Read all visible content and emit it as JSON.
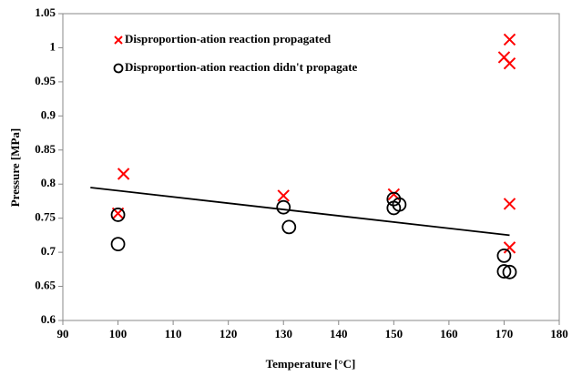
{
  "chart_data": {
    "type": "scatter",
    "xlabel": "Temperature [°C]",
    "ylabel": "Pressure [MPa]",
    "xlim": [
      90,
      180
    ],
    "xticks": [
      90,
      100,
      110,
      120,
      130,
      140,
      150,
      160,
      170,
      180
    ],
    "ylim": [
      0.6,
      1.05
    ],
    "yticks": [
      0.6,
      0.65,
      0.7,
      0.75,
      0.8,
      0.85,
      0.9,
      0.95,
      1,
      1.05
    ],
    "legend": "upper left",
    "series": [
      {
        "name": "Disproportion-ation reaction  propagated",
        "color": "#ff0000",
        "marker": "x",
        "x": [
          101,
          100,
          130,
          150,
          170,
          171,
          171,
          171,
          171
        ],
        "values": [
          0.815,
          0.757,
          0.783,
          0.785,
          0.986,
          1.012,
          0.977,
          0.771,
          0.707
        ]
      },
      {
        "name": "Disproportion-ation reaction didn't propagate",
        "color": "#000000",
        "marker": "o",
        "x": [
          100,
          100,
          130,
          131,
          150,
          150,
          151,
          170,
          170,
          171
        ],
        "values": [
          0.755,
          0.712,
          0.766,
          0.737,
          0.778,
          0.765,
          0.77,
          0.695,
          0.672,
          0.671
        ]
      },
      {
        "type": "line",
        "color": "#000000",
        "x": [
          95,
          171
        ],
        "values": [
          0.795,
          0.725
        ]
      }
    ]
  }
}
